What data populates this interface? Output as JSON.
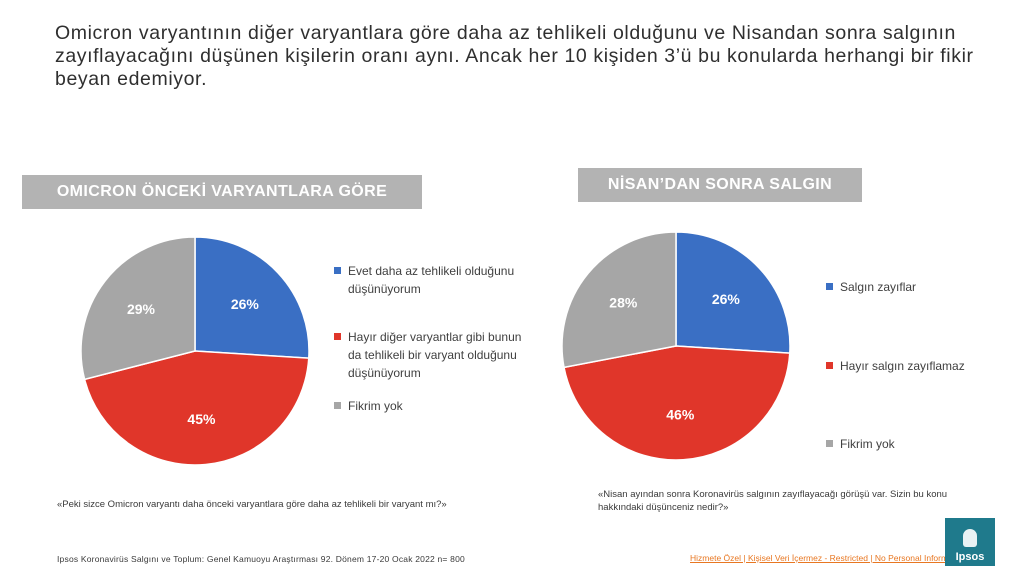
{
  "headline": "Omicron varyantının diğer varyantlara göre daha az tehlikeli olduğunu ve Nisandan sonra salgının zayıflayacağını düşünen kişilerin oranı aynı. Ancak her 10 kişiden 3’ü bu konularda herhangi bir fikir beyan edemiyor.",
  "footer": {
    "source": "Ipsos Koronavirüs  Salgını ve Toplum:  Genel Kamuoyu Araştırması 92. Dönem  17-20  Ocak 2022 n= 800",
    "classification": "Hizmete Özel | Kişisel Veri İçermez - Restricted | No Personal Information",
    "logo_text": "Ipsos"
  },
  "colors": {
    "blue": "#3a6fc4",
    "red": "#e0362a",
    "gray": "#a6a6a6",
    "band": "#b3b3b3",
    "footer_link": "#e87722"
  },
  "chart_data": [
    {
      "type": "pie",
      "title": "OMICRON ÖNCEKİ VARYANTLARA GÖRE",
      "question": "«Peki sizce Omicron varyantı daha önceki varyantlara göre daha az tehlikeli bir varyant mı?»",
      "slices": [
        {
          "label": "Evet daha az tehlikeli olduğunu düşünüyorum",
          "value": 26,
          "display": "26%",
          "color": "#3a6fc4"
        },
        {
          "label": "Hayır diğer varyantlar gibi bunun da tehlikeli bir varyant olduğunu düşünüyorum",
          "value": 45,
          "display": "45%",
          "color": "#e0362a"
        },
        {
          "label": "Fikrim yok",
          "value": 29,
          "display": "29%",
          "color": "#a6a6a6"
        }
      ],
      "legend_position": "right"
    },
    {
      "type": "pie",
      "title": "NİSAN’DAN SONRA SALGIN",
      "question": "«Nisan ayından sonra Koronavirüs salgının zayıflayacağı görüşü var. Sizin bu konu hakkındaki düşünceniz nedir?»",
      "slices": [
        {
          "label": "Salgın zayıflar",
          "value": 26,
          "display": "26%",
          "color": "#3a6fc4"
        },
        {
          "label": "Hayır salgın zayıflamaz",
          "value": 46,
          "display": "46%",
          "color": "#e0362a"
        },
        {
          "label": "Fikrim yok",
          "value": 28,
          "display": "28%",
          "color": "#a6a6a6"
        }
      ],
      "legend_position": "right"
    }
  ]
}
